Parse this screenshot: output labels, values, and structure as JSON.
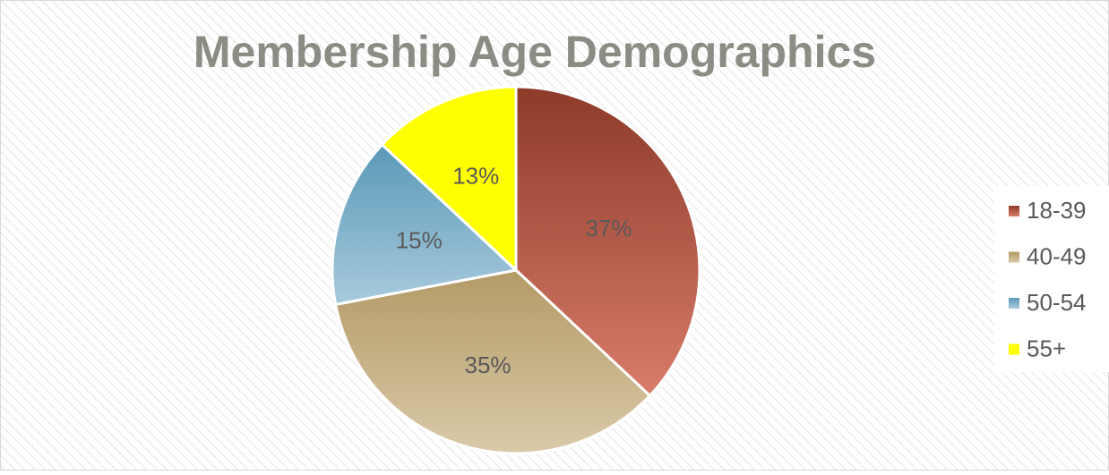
{
  "chart_data": {
    "type": "pie",
    "title": "Membership Age Demographics",
    "categories": [
      "18-39",
      "40-49",
      "50-54",
      "55+"
    ],
    "values": [
      37,
      35,
      15,
      13
    ],
    "value_labels": [
      "37%",
      "35%",
      "15%",
      "13%"
    ],
    "colors": [
      [
        "#8d3a29",
        "#d97c6a"
      ],
      [
        "#b39a66",
        "#dacaa8"
      ],
      [
        "#5a99b7",
        "#a8cadd"
      ],
      [
        "#ffff00",
        "#ffff00"
      ]
    ],
    "legend": "right"
  }
}
